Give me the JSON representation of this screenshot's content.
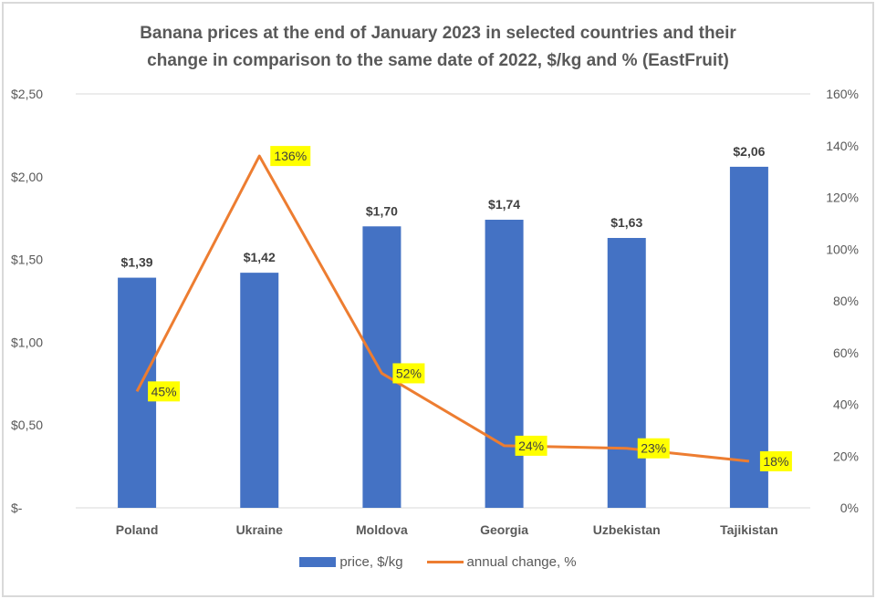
{
  "chart_data": {
    "type": "bar+line",
    "title_line1": "Banana prices at the end of January  2023 in selected countries and their",
    "title_line2": "change in comparison to the same date of 2022, $/kg and % (EastFruit)",
    "categories": [
      "Poland",
      "Ukraine",
      "Moldova",
      "Georgia",
      "Uzbekistan",
      "Tajikistan"
    ],
    "series": [
      {
        "name": "price, $/kg",
        "type": "bar",
        "axis": "left",
        "color": "#4472c4",
        "values": [
          1.39,
          1.42,
          1.7,
          1.74,
          1.63,
          2.06
        ],
        "labels": [
          "$1,39",
          "$1,42",
          "$1,70",
          "$1,74",
          "$1,63",
          "$2,06"
        ]
      },
      {
        "name": "annual change, %",
        "type": "line",
        "axis": "right",
        "color": "#ed7d31",
        "values": [
          45,
          136,
          52,
          24,
          23,
          18
        ],
        "labels": [
          "45%",
          "136%",
          "52%",
          "24%",
          "23%",
          "18%"
        ],
        "label_background": "#ffff00"
      }
    ],
    "left_axis": {
      "range": [
        0,
        2.5
      ],
      "ticks": [
        "$-",
        "$0,50",
        "$1,00",
        "$1,50",
        "$2,00",
        "$2,50"
      ]
    },
    "right_axis": {
      "range": [
        0,
        160
      ],
      "ticks": [
        "0%",
        "20%",
        "40%",
        "60%",
        "80%",
        "100%",
        "120%",
        "140%",
        "160%"
      ]
    },
    "legend_position": "bottom",
    "grid": false
  }
}
